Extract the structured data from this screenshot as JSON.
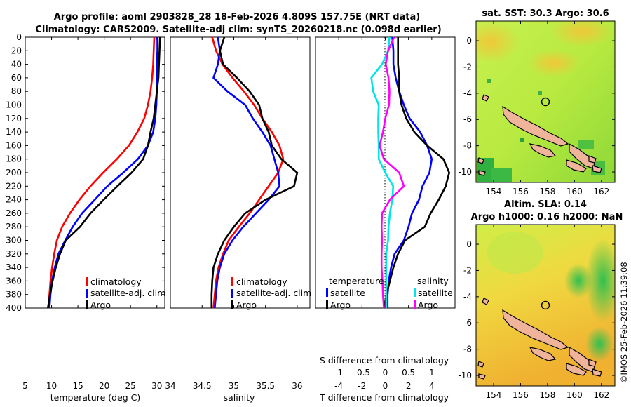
{
  "header": {
    "title_line1": "Argo profile: aoml 2903828_28 18-Feb-2026 4.809S 157.75E (NRT data)",
    "title_line2": "Climatology: CARS2009. Satellite-adj clim: synTS_20260218.nc (0.098d earlier)"
  },
  "credit": "©IMOS 25-Feb-2026 11:39:08",
  "colors": {
    "climatology": "#ff0000",
    "satellite": "#0000ff",
    "argo": "#000000",
    "sat_salinity": "#00e5e5",
    "argo_salinity_diff": "#ff00ff",
    "land": "#f0b49a"
  },
  "chart_data": [
    {
      "id": "temperature",
      "type": "line",
      "xlabel": "temperature (deg C)",
      "ylabel": "",
      "xlim": [
        5,
        31.5
      ],
      "ylim": [
        400,
        0
      ],
      "xticks": [
        "5",
        "10",
        "15",
        "20",
        "25",
        "30"
      ],
      "yticks": [
        "0",
        "20",
        "40",
        "60",
        "80",
        "100",
        "120",
        "140",
        "160",
        "180",
        "200",
        "220",
        "240",
        "260",
        "280",
        "300",
        "320",
        "340",
        "360",
        "380",
        "400"
      ],
      "legend": [
        "climatology",
        "satellite-adj. clim",
        "Argo"
      ],
      "series": [
        {
          "name": "climatology",
          "color": "#ff0000",
          "points": [
            [
              29.5,
              0
            ],
            [
              29.4,
              20
            ],
            [
              29.3,
              40
            ],
            [
              29.1,
              60
            ],
            [
              28.8,
              80
            ],
            [
              28.3,
              100
            ],
            [
              27.6,
              120
            ],
            [
              26.3,
              140
            ],
            [
              24.7,
              160
            ],
            [
              22.4,
              180
            ],
            [
              19.8,
              200
            ],
            [
              17.4,
              220
            ],
            [
              15.3,
              240
            ],
            [
              13.5,
              260
            ],
            [
              12.0,
              280
            ],
            [
              11.0,
              300
            ],
            [
              10.5,
              320
            ],
            [
              10.1,
              340
            ],
            [
              9.8,
              360
            ],
            [
              9.6,
              380
            ],
            [
              9.4,
              400
            ]
          ]
        },
        {
          "name": "satellite-adj. clim",
          "color": "#0000ff",
          "points": [
            [
              30.1,
              0
            ],
            [
              30.1,
              20
            ],
            [
              30.0,
              40
            ],
            [
              30.0,
              60
            ],
            [
              30.0,
              80
            ],
            [
              29.9,
              100
            ],
            [
              29.7,
              120
            ],
            [
              29.3,
              140
            ],
            [
              28.3,
              160
            ],
            [
              26.4,
              180
            ],
            [
              23.6,
              200
            ],
            [
              20.6,
              220
            ],
            [
              18.2,
              240
            ],
            [
              15.8,
              260
            ],
            [
              14.0,
              280
            ],
            [
              12.6,
              300
            ],
            [
              11.3,
              320
            ],
            [
              10.6,
              340
            ],
            [
              10.1,
              360
            ],
            [
              9.8,
              380
            ],
            [
              9.6,
              400
            ]
          ]
        },
        {
          "name": "Argo",
          "color": "#000000",
          "points": [
            [
              30.6,
              0
            ],
            [
              30.5,
              20
            ],
            [
              30.4,
              40
            ],
            [
              30.3,
              60
            ],
            [
              30.0,
              80
            ],
            [
              29.7,
              100
            ],
            [
              29.4,
              120
            ],
            [
              28.8,
              140
            ],
            [
              28.3,
              160
            ],
            [
              27.4,
              180
            ],
            [
              25.2,
              200
            ],
            [
              22.5,
              220
            ],
            [
              19.9,
              240
            ],
            [
              17.4,
              260
            ],
            [
              15.4,
              280
            ],
            [
              12.7,
              300
            ],
            [
              11.6,
              320
            ],
            [
              10.8,
              340
            ],
            [
              10.2,
              360
            ],
            [
              9.7,
              380
            ],
            [
              9.3,
              400
            ]
          ]
        }
      ]
    },
    {
      "id": "salinity",
      "type": "line",
      "xlabel": "salinity",
      "ylabel": "",
      "xlim": [
        34,
        36.2
      ],
      "ylim": [
        400,
        0
      ],
      "xticks": [
        "34",
        "34.5",
        "35",
        "35.5",
        "36"
      ],
      "legend": [
        "climatology",
        "satellite-adj. clim",
        "Argo"
      ],
      "series": [
        {
          "name": "climatology",
          "color": "#ff0000",
          "points": [
            [
              34.66,
              0
            ],
            [
              34.72,
              20
            ],
            [
              34.82,
              40
            ],
            [
              34.98,
              60
            ],
            [
              35.16,
              80
            ],
            [
              35.32,
              100
            ],
            [
              35.45,
              120
            ],
            [
              35.6,
              140
            ],
            [
              35.72,
              160
            ],
            [
              35.78,
              180
            ],
            [
              35.7,
              200
            ],
            [
              35.55,
              220
            ],
            [
              35.4,
              240
            ],
            [
              35.25,
              260
            ],
            [
              35.08,
              280
            ],
            [
              34.92,
              300
            ],
            [
              34.83,
              320
            ],
            [
              34.76,
              340
            ],
            [
              34.72,
              360
            ],
            [
              34.7,
              380
            ],
            [
              34.68,
              400
            ]
          ]
        },
        {
          "name": "satellite-adj. clim",
          "color": "#0000ff",
          "points": [
            [
              34.75,
              0
            ],
            [
              34.78,
              20
            ],
            [
              34.75,
              40
            ],
            [
              34.68,
              60
            ],
            [
              34.9,
              80
            ],
            [
              35.18,
              100
            ],
            [
              35.3,
              120
            ],
            [
              35.45,
              140
            ],
            [
              35.58,
              160
            ],
            [
              35.64,
              180
            ],
            [
              35.7,
              200
            ],
            [
              35.72,
              220
            ],
            [
              35.55,
              240
            ],
            [
              35.35,
              260
            ],
            [
              35.15,
              280
            ],
            [
              34.98,
              300
            ],
            [
              34.85,
              320
            ],
            [
              34.78,
              340
            ],
            [
              34.74,
              360
            ],
            [
              34.72,
              380
            ],
            [
              34.7,
              400
            ]
          ]
        },
        {
          "name": "Argo",
          "color": "#000000",
          "points": [
            [
              34.85,
              0
            ],
            [
              34.78,
              20
            ],
            [
              34.83,
              40
            ],
            [
              35.05,
              60
            ],
            [
              35.25,
              80
            ],
            [
              35.4,
              100
            ],
            [
              35.45,
              120
            ],
            [
              35.55,
              140
            ],
            [
              35.6,
              160
            ],
            [
              35.75,
              180
            ],
            [
              36.0,
              200
            ],
            [
              35.95,
              220
            ],
            [
              35.5,
              240
            ],
            [
              35.18,
              260
            ],
            [
              35.0,
              280
            ],
            [
              34.85,
              300
            ],
            [
              34.75,
              320
            ],
            [
              34.68,
              340
            ],
            [
              34.66,
              360
            ],
            [
              34.65,
              380
            ],
            [
              34.65,
              400
            ]
          ]
        }
      ]
    },
    {
      "id": "differences",
      "type": "line",
      "xlabel": "T difference from climatology",
      "x2label": "S difference from climatology",
      "xlim": [
        -6,
        6
      ],
      "x2lim": [
        -1.5,
        1.5
      ],
      "ylim": [
        400,
        0
      ],
      "xticks": [
        "-4",
        "-2",
        "0",
        "2",
        "4"
      ],
      "x2ticks": [
        "-1",
        "-0.5",
        "0",
        "0.5",
        "1"
      ],
      "legend_temperature_title": "temperature",
      "legend_salinity_title": "salinity",
      "legend_temperature": [
        "satellite",
        "Argo"
      ],
      "legend_salinity": [
        "satellite",
        "Argo"
      ],
      "series": [
        {
          "name": "temperature satellite",
          "axis": "T",
          "color": "#0000ff",
          "points": [
            [
              0.6,
              0
            ],
            [
              0.7,
              20
            ],
            [
              0.7,
              40
            ],
            [
              0.9,
              60
            ],
            [
              1.2,
              80
            ],
            [
              1.6,
              100
            ],
            [
              2.1,
              120
            ],
            [
              3.0,
              140
            ],
            [
              3.6,
              160
            ],
            [
              4.0,
              180
            ],
            [
              3.8,
              200
            ],
            [
              3.2,
              220
            ],
            [
              2.9,
              240
            ],
            [
              2.3,
              260
            ],
            [
              2.0,
              280
            ],
            [
              1.6,
              300
            ],
            [
              0.8,
              320
            ],
            [
              0.5,
              340
            ],
            [
              0.3,
              360
            ],
            [
              0.2,
              380
            ],
            [
              0.2,
              400
            ]
          ]
        },
        {
          "name": "temperature Argo",
          "axis": "T",
          "color": "#000000",
          "points": [
            [
              1.1,
              0
            ],
            [
              1.1,
              20
            ],
            [
              1.1,
              40
            ],
            [
              1.2,
              60
            ],
            [
              1.2,
              80
            ],
            [
              1.4,
              100
            ],
            [
              1.8,
              120
            ],
            [
              2.5,
              140
            ],
            [
              3.6,
              160
            ],
            [
              5.0,
              180
            ],
            [
              5.5,
              200
            ],
            [
              5.2,
              220
            ],
            [
              4.6,
              240
            ],
            [
              3.9,
              260
            ],
            [
              3.4,
              280
            ],
            [
              1.7,
              300
            ],
            [
              1.1,
              320
            ],
            [
              0.7,
              340
            ],
            [
              0.4,
              360
            ],
            [
              0.1,
              380
            ],
            [
              -0.1,
              400
            ]
          ]
        },
        {
          "name": "salinity satellite",
          "axis": "S",
          "color": "#00e5e5",
          "points": [
            [
              0.09,
              0
            ],
            [
              0.06,
              20
            ],
            [
              -0.07,
              40
            ],
            [
              -0.3,
              60
            ],
            [
              -0.26,
              80
            ],
            [
              -0.14,
              100
            ],
            [
              -0.15,
              120
            ],
            [
              -0.15,
              140
            ],
            [
              -0.14,
              160
            ],
            [
              -0.14,
              180
            ],
            [
              0.0,
              200
            ],
            [
              0.17,
              220
            ],
            [
              0.15,
              240
            ],
            [
              0.1,
              260
            ],
            [
              0.07,
              280
            ],
            [
              0.06,
              300
            ],
            [
              0.02,
              320
            ],
            [
              0.02,
              340
            ],
            [
              0.02,
              360
            ],
            [
              0.02,
              380
            ],
            [
              0.02,
              400
            ]
          ]
        },
        {
          "name": "salinity Argo",
          "axis": "S",
          "color": "#ff00ff",
          "points": [
            [
              0.19,
              0
            ],
            [
              0.06,
              20
            ],
            [
              0.01,
              40
            ],
            [
              0.07,
              60
            ],
            [
              0.09,
              80
            ],
            [
              0.08,
              100
            ],
            [
              0.0,
              120
            ],
            [
              -0.05,
              140
            ],
            [
              -0.12,
              160
            ],
            [
              -0.03,
              180
            ],
            [
              0.3,
              200
            ],
            [
              0.4,
              220
            ],
            [
              0.1,
              240
            ],
            [
              -0.07,
              260
            ],
            [
              -0.08,
              280
            ],
            [
              -0.07,
              300
            ],
            [
              -0.08,
              320
            ],
            [
              -0.08,
              340
            ],
            [
              -0.06,
              360
            ],
            [
              -0.05,
              380
            ],
            [
              -0.03,
              400
            ]
          ]
        }
      ]
    },
    {
      "id": "sst_map",
      "type": "heatmap",
      "title": "sat. SST: 30.3 Argo: 30.6",
      "xlim": [
        152.7,
        163.0
      ],
      "ylim": [
        -10.8,
        1.5
      ],
      "xticks": [
        "154",
        "156",
        "158",
        "160",
        "162"
      ],
      "yticks": [
        "0",
        "-2",
        "-4",
        "-6",
        "-8",
        "-10"
      ],
      "marker": {
        "lon": 157.75,
        "lat": -4.809
      }
    },
    {
      "id": "sla_map",
      "type": "heatmap",
      "title": "Altim. SLA: 0.14",
      "subtitle": "Argo h1000: 0.16 h2000: NaN",
      "xlim": [
        152.7,
        163.0
      ],
      "ylim": [
        -10.8,
        1.5
      ],
      "xticks": [
        "154",
        "156",
        "158",
        "160",
        "162"
      ],
      "yticks": [
        "0",
        "-2",
        "-4",
        "-6",
        "-8",
        "-10"
      ],
      "marker": {
        "lon": 157.75,
        "lat": -4.809
      }
    }
  ]
}
